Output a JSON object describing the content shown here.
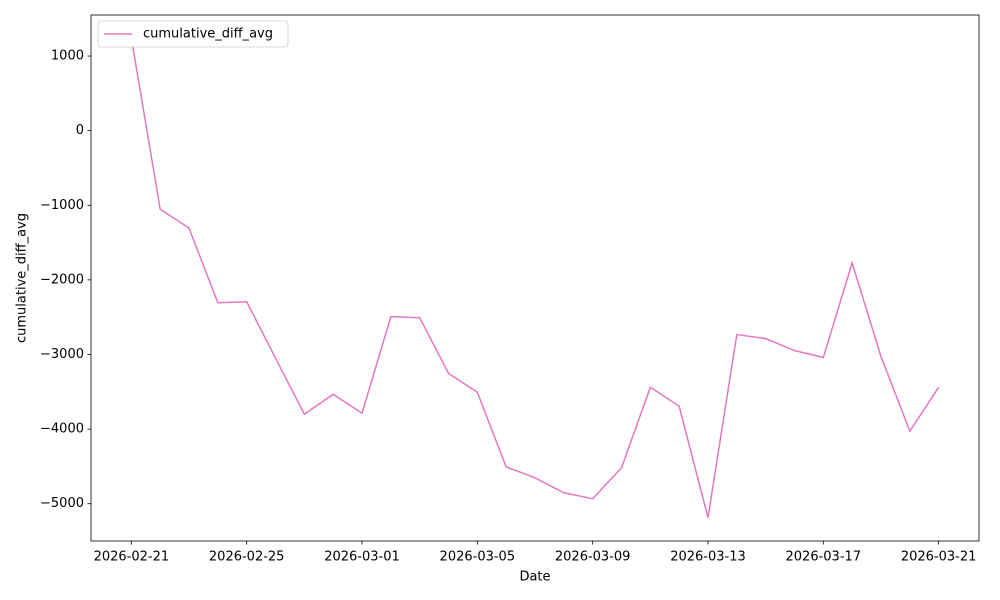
{
  "chart_data": {
    "type": "line",
    "x_label": "Date",
    "y_label": "cumulative_diff_avg",
    "x": [
      "2026-02-21",
      "2026-02-22",
      "2026-02-23",
      "2026-02-24",
      "2026-02-25",
      "2026-02-26",
      "2026-02-27",
      "2026-02-28",
      "2026-03-01",
      "2026-03-02",
      "2026-03-03",
      "2026-03-04",
      "2026-03-05",
      "2026-03-06",
      "2026-03-07",
      "2026-03-08",
      "2026-03-09",
      "2026-03-10",
      "2026-03-11",
      "2026-03-12",
      "2026-03-13",
      "2026-03-14",
      "2026-03-15",
      "2026-03-16",
      "2026-03-17",
      "2026-03-18",
      "2026-03-19",
      "2026-03-20",
      "2026-03-21"
    ],
    "series": [
      {
        "name": "cumulative_diff_avg",
        "color": "#e377c2",
        "values": [
          1240,
          -1053,
          -1307,
          -2307,
          -2293,
          -3050,
          -3800,
          -3533,
          -3787,
          -2493,
          -2507,
          -3253,
          -3507,
          -4507,
          -4653,
          -4853,
          -4933,
          -4520,
          -3440,
          -3693,
          -5187,
          -2733,
          -2787,
          -2947,
          -3040,
          -1773,
          -3027,
          -4027,
          -3440
        ]
      }
    ],
    "ylim": [
      -5500,
      1550
    ],
    "yticks": [
      {
        "value": -5000,
        "label": "−5000"
      },
      {
        "value": -4000,
        "label": "−4000"
      },
      {
        "value": -3000,
        "label": "−3000"
      },
      {
        "value": -2000,
        "label": "−2000"
      },
      {
        "value": -1000,
        "label": "−1000"
      },
      0,
      1000
    ],
    "xticks": [
      "2026-02-21",
      "2026-02-25",
      "2026-03-01",
      "2026-03-05",
      "2026-03-09",
      "2026-03-13",
      "2026-03-17",
      "2026-03-21"
    ],
    "grid": false,
    "legend": "upper left"
  }
}
